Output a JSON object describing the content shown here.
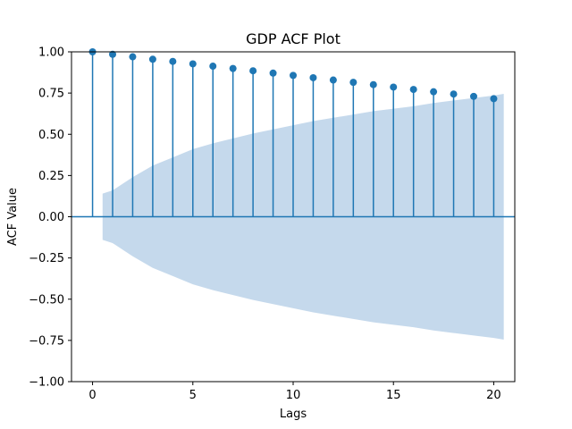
{
  "chart_data": {
    "type": "stem",
    "title": "GDP ACF Plot",
    "xlabel": "Lags",
    "ylabel": "ACF Value",
    "xlim": [
      -1.05,
      21.05
    ],
    "ylim": [
      -1.0,
      1.0
    ],
    "xticks": [
      0,
      5,
      10,
      15,
      20
    ],
    "yticks": [
      -1.0,
      -0.75,
      -0.5,
      -0.25,
      0.0,
      0.25,
      0.5,
      0.75,
      1.0
    ],
    "ytick_labels": [
      "−1.00",
      "−0.75",
      "−0.50",
      "−0.25",
      "0.00",
      "0.25",
      "0.50",
      "0.75",
      "1.00"
    ],
    "xtick_labels": [
      "0",
      "5",
      "10",
      "15",
      "20"
    ],
    "lags": [
      0,
      1,
      2,
      3,
      4,
      5,
      6,
      7,
      8,
      9,
      10,
      11,
      12,
      13,
      14,
      15,
      16,
      17,
      18,
      19,
      20
    ],
    "acf": [
      1.0,
      0.985,
      0.97,
      0.955,
      0.942,
      0.927,
      0.913,
      0.899,
      0.885,
      0.871,
      0.857,
      0.843,
      0.829,
      0.815,
      0.801,
      0.786,
      0.772,
      0.758,
      0.744,
      0.73,
      0.716
    ],
    "confidence_band": {
      "x": [
        0.5,
        1,
        2,
        3,
        4,
        5,
        6,
        7,
        8,
        9,
        10,
        11,
        12,
        13,
        14,
        15,
        16,
        17,
        18,
        19,
        20,
        20.5
      ],
      "upper": [
        0.14,
        0.16,
        0.24,
        0.31,
        0.36,
        0.41,
        0.445,
        0.475,
        0.505,
        0.53,
        0.555,
        0.58,
        0.6,
        0.62,
        0.64,
        0.655,
        0.67,
        0.69,
        0.705,
        0.72,
        0.735,
        0.745
      ]
    },
    "colors": {
      "stem": "#1f77b4",
      "band": "#c5d9ec",
      "zero_line": "#1f77b4"
    },
    "grid": false
  }
}
